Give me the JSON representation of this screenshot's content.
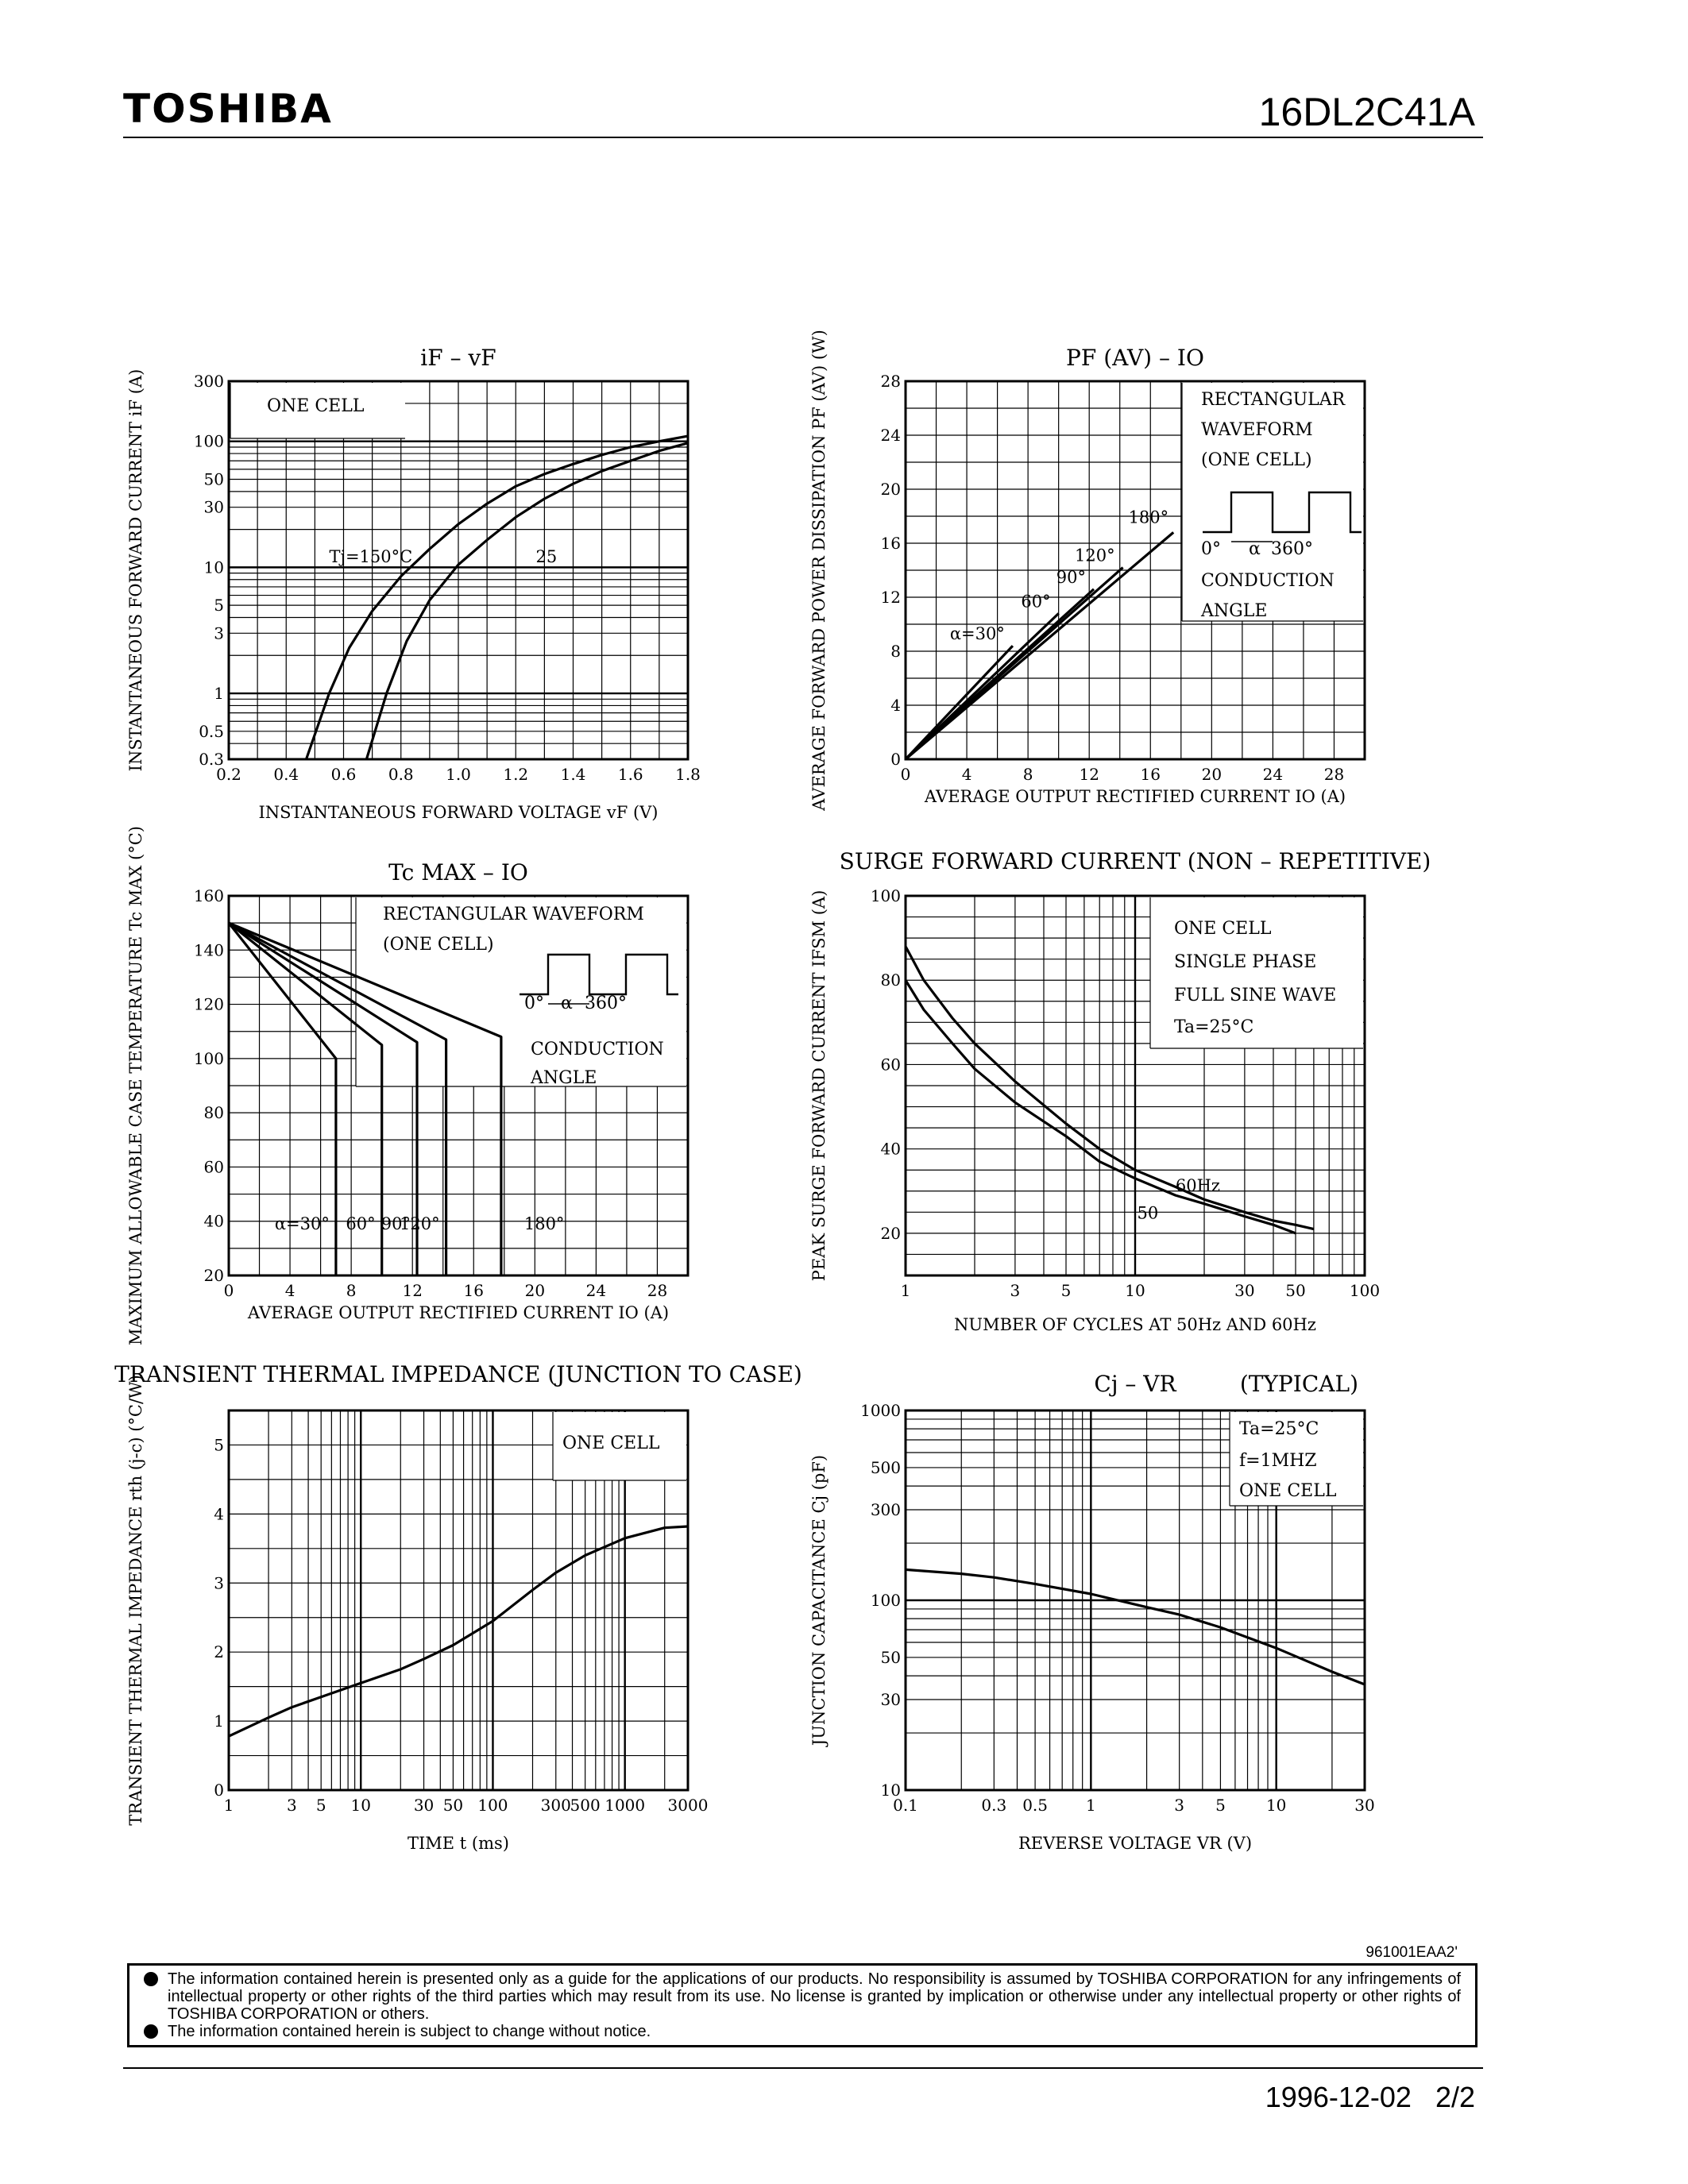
{
  "header": {
    "brand": "TOSHIBA",
    "part_number": "16DL2C41A"
  },
  "footer": {
    "doc_ref": "961001EAA2'",
    "disclaimer": [
      "The information contained herein is presented only as a guide for the applications of our products. No responsibility is assumed by TOSHIBA CORPORATION for any infringements of intellectual property or other rights of the third parties which may result from its use. No license is granted by implication or otherwise under any intellectual property or other rights of TOSHIBA CORPORATION or others.",
      "The information contained herein is subject to change without notice."
    ],
    "date": "1996-12-02",
    "page": "2/2"
  },
  "chart_data": [
    {
      "id": "c1",
      "type": "line",
      "title": "iF – vF",
      "xlabel": "INSTANTANEOUS FORWARD VOLTAGE vF (V)",
      "ylabel": "INSTANTANEOUS FORWARD CURRENT iF (A)",
      "xscale": "linear",
      "yscale": "log",
      "xlim": [
        0.2,
        1.8
      ],
      "ylim": [
        0.3,
        300
      ],
      "xticks": [
        "0.2",
        "0.4",
        "0.6",
        "0.8",
        "1.0",
        "1.2",
        "1.4",
        "1.6",
        "1.8"
      ],
      "yticks": [
        "0.3",
        "0.5",
        "1",
        "3",
        "5",
        "10",
        "30",
        "50",
        "100",
        "300"
      ],
      "notes": [
        "ONE CELL"
      ],
      "series": [
        {
          "name": "Tj=150°C",
          "x": [
            0.47,
            0.55,
            0.62,
            0.7,
            0.8,
            0.9,
            1.0,
            1.1,
            1.2,
            1.3,
            1.4,
            1.5,
            1.6,
            1.7,
            1.8
          ],
          "y": [
            0.3,
            1,
            2.3,
            4.5,
            8.5,
            14,
            22,
            32,
            44,
            55,
            66,
            78,
            90,
            100,
            110
          ]
        },
        {
          "name": "25",
          "x": [
            0.68,
            0.75,
            0.82,
            0.9,
            1.0,
            1.1,
            1.2,
            1.3,
            1.4,
            1.5,
            1.6,
            1.7,
            1.8
          ],
          "y": [
            0.3,
            1,
            2.6,
            5.5,
            10.5,
            16.5,
            25,
            35,
            46,
            58,
            70,
            84,
            97
          ]
        }
      ]
    },
    {
      "id": "c2",
      "type": "line",
      "title": "PF (AV) – IO",
      "xlabel": "AVERAGE OUTPUT RECTIFIED CURRENT IO (A)",
      "ylabel": "AVERAGE FORWARD POWER DISSIPATION PF (AV) (W)",
      "xscale": "linear",
      "yscale": "linear",
      "xlim": [
        0,
        30
      ],
      "ylim": [
        0,
        28
      ],
      "xticks": [
        "0",
        "4",
        "8",
        "12",
        "16",
        "20",
        "24",
        "28"
      ],
      "yticks": [
        "0",
        "4",
        "8",
        "12",
        "16",
        "20",
        "24",
        "28"
      ],
      "notes": [
        "RECTANGULAR",
        "WAVEFORM",
        "(ONE CELL)",
        "0°",
        "α",
        "360°",
        "CONDUCTION",
        "ANGLE"
      ],
      "series": [
        {
          "name": "α=30°",
          "x": [
            0,
            7
          ],
          "y": [
            0,
            8.4
          ]
        },
        {
          "name": "60°",
          "x": [
            0,
            10
          ],
          "y": [
            0,
            10.8
          ]
        },
        {
          "name": "90°",
          "x": [
            0,
            12.3
          ],
          "y": [
            0,
            12.6
          ]
        },
        {
          "name": "120°",
          "x": [
            0,
            14.2
          ],
          "y": [
            0,
            14.2
          ]
        },
        {
          "name": "180°",
          "x": [
            0,
            17.5
          ],
          "y": [
            0,
            16.8
          ]
        }
      ]
    },
    {
      "id": "c3",
      "type": "line",
      "title": "Tc MAX – IO",
      "xlabel": "AVERAGE OUTPUT RECTIFIED CURRENT IO (A)",
      "ylabel": "MAXIMUM ALLOWABLE CASE TEMPERATURE Tc MAX (°C)",
      "xscale": "linear",
      "yscale": "linear",
      "xlim": [
        0,
        30
      ],
      "ylim": [
        20,
        160
      ],
      "xticks": [
        "0",
        "4",
        "8",
        "12",
        "16",
        "20",
        "24",
        "28"
      ],
      "yticks": [
        "20",
        "40",
        "60",
        "80",
        "100",
        "120",
        "140",
        "160"
      ],
      "notes": [
        "RECTANGULAR WAVEFORM",
        "(ONE CELL)",
        "0°",
        "α",
        "360°",
        "CONDUCTION",
        "ANGLE"
      ],
      "series": [
        {
          "name": "α=30°",
          "x": [
            0,
            7,
            7
          ],
          "y": [
            150,
            100,
            20
          ]
        },
        {
          "name": "60°",
          "x": [
            0,
            10,
            10
          ],
          "y": [
            150,
            105,
            20
          ]
        },
        {
          "name": "90°",
          "x": [
            0,
            12.3,
            12.3
          ],
          "y": [
            150,
            106,
            20
          ]
        },
        {
          "name": "120°",
          "x": [
            0,
            14.2,
            14.2
          ],
          "y": [
            150,
            107,
            20
          ]
        },
        {
          "name": "180°",
          "x": [
            0,
            17.8,
            17.8
          ],
          "y": [
            150,
            108,
            20
          ]
        }
      ]
    },
    {
      "id": "c4",
      "type": "line",
      "title": "SURGE FORWARD CURRENT (NON – REPETITIVE)",
      "xlabel": "NUMBER OF CYCLES AT 50Hz AND 60Hz",
      "ylabel": "PEAK SURGE FORWARD CURRENT IFSM (A)",
      "xscale": "log",
      "yscale": "linear",
      "xlim": [
        1,
        100
      ],
      "ylim": [
        10,
        100
      ],
      "xticks": [
        "1",
        "3",
        "5",
        "10",
        "30",
        "50",
        "100"
      ],
      "yticks": [
        "20",
        "40",
        "60",
        "80",
        "100"
      ],
      "notes": [
        "ONE CELL",
        "SINGLE PHASE",
        "FULL SINE WAVE",
        "Ta=25°C"
      ],
      "series": [
        {
          "name": "60Hz",
          "x": [
            1,
            1.2,
            1.6,
            2,
            3,
            5,
            7,
            10,
            15,
            20,
            30,
            40,
            50,
            60
          ],
          "y": [
            88,
            80,
            71,
            65,
            56,
            46,
            40,
            35,
            31,
            28,
            25,
            23,
            22,
            21
          ]
        },
        {
          "name": "50",
          "x": [
            1,
            1.2,
            1.6,
            2,
            3,
            5,
            7,
            10,
            15,
            20,
            30,
            40,
            50
          ],
          "y": [
            80,
            73,
            65,
            59,
            51,
            43,
            37,
            33,
            29,
            27,
            24,
            22,
            20
          ]
        }
      ]
    },
    {
      "id": "c5",
      "type": "line",
      "title": "TRANSIENT THERMAL IMPEDANCE (JUNCTION TO CASE)",
      "xlabel": "TIME t (ms)",
      "ylabel": "TRANSIENT THERMAL IMPEDANCE rth (j-c) (°C/W)",
      "xscale": "log",
      "yscale": "linear",
      "xlim": [
        1,
        3000
      ],
      "ylim": [
        0,
        5.5
      ],
      "xticks": [
        "1",
        "3",
        "5",
        "10",
        "30",
        "50",
        "100",
        "300",
        "500",
        "1000",
        "3000"
      ],
      "yticks": [
        "0",
        "1",
        "2",
        "3",
        "4",
        "5"
      ],
      "notes": [
        "ONE CELL"
      ],
      "series": [
        {
          "name": "",
          "x": [
            1,
            2,
            3,
            5,
            10,
            20,
            30,
            50,
            100,
            200,
            300,
            500,
            1000,
            2000,
            3000
          ],
          "y": [
            0.78,
            1.05,
            1.2,
            1.35,
            1.55,
            1.75,
            1.9,
            2.1,
            2.45,
            2.9,
            3.15,
            3.4,
            3.65,
            3.8,
            3.82
          ]
        }
      ]
    },
    {
      "id": "c6",
      "type": "line",
      "title": "Cj – VR",
      "subtitle": "(TYPICAL)",
      "xlabel": "REVERSE VOLTAGE VR (V)",
      "ylabel": "JUNCTION CAPACITANCE Cj (pF)",
      "xscale": "log",
      "yscale": "log",
      "xlim": [
        0.1,
        30
      ],
      "ylim": [
        10,
        1000
      ],
      "xticks": [
        "0.1",
        "0.3",
        "0.5",
        "1",
        "3",
        "5",
        "10",
        "30"
      ],
      "yticks": [
        "10",
        "30",
        "50",
        "100",
        "300",
        "500",
        "1000"
      ],
      "notes": [
        "Ta=25°C",
        "f=1MHZ",
        "ONE CELL"
      ],
      "series": [
        {
          "name": "",
          "x": [
            0.1,
            0.2,
            0.3,
            0.5,
            1,
            2,
            3,
            5,
            10,
            20,
            30
          ],
          "y": [
            145,
            138,
            132,
            122,
            108,
            92,
            84,
            72,
            56,
            42,
            36
          ]
        }
      ]
    }
  ]
}
